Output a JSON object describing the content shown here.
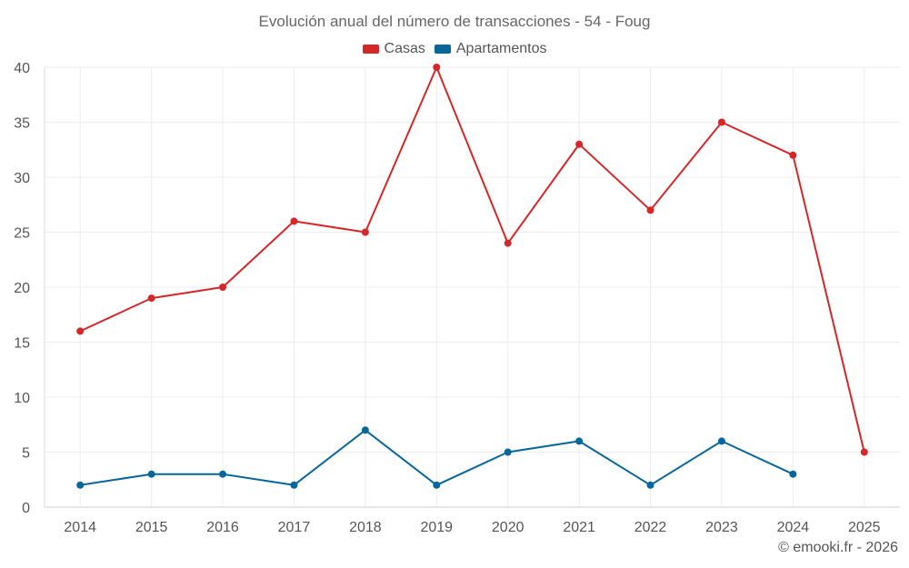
{
  "chart_data": {
    "type": "line",
    "title": "Evolución anual del número de transacciones - 54 - Foug",
    "categories": [
      "2014",
      "2015",
      "2016",
      "2017",
      "2018",
      "2019",
      "2020",
      "2021",
      "2022",
      "2023",
      "2024",
      "2025"
    ],
    "series": [
      {
        "name": "Casas",
        "color": "#d62728",
        "values": [
          16,
          19,
          20,
          26,
          25,
          40,
          24,
          33,
          27,
          35,
          32,
          5
        ]
      },
      {
        "name": "Apartamentos",
        "color": "#07679b",
        "values": [
          2,
          3,
          3,
          2,
          7,
          2,
          5,
          6,
          2,
          6,
          3,
          null
        ]
      }
    ],
    "ylim": [
      0,
      40
    ],
    "yticks": [
      0,
      5,
      10,
      15,
      20,
      25,
      30,
      35,
      40
    ],
    "xlabel": "",
    "ylabel": "",
    "grid": true,
    "legend_position": "top-center"
  },
  "credit": "© emooki.fr - 2026"
}
